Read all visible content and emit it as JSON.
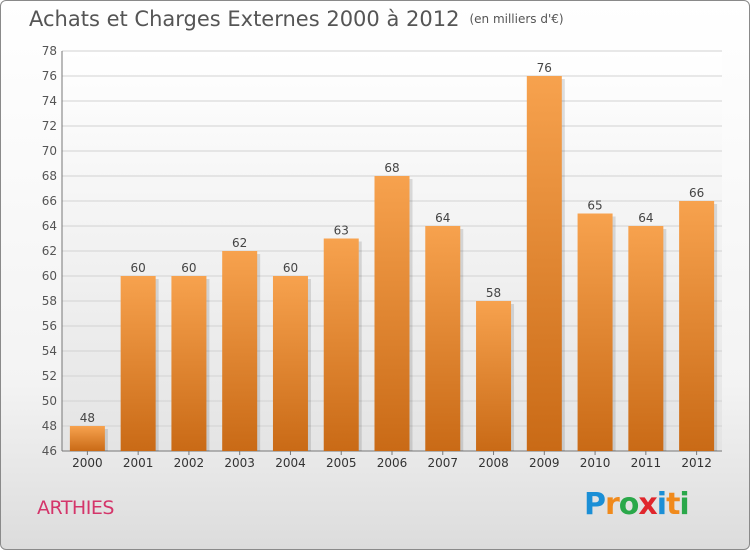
{
  "page": {
    "title": "Achats et Charges Externes 2000 à 2012",
    "unit": "(en milliers d'€)",
    "city": "ARTHIES",
    "logo": [
      "P",
      "r",
      "o",
      "x",
      "i",
      "t",
      "i"
    ],
    "logo_colors": [
      "#1b8fd6",
      "#f08a1c",
      "#2aa84a",
      "#e0262c",
      "#1b8fd6",
      "#f08a1c",
      "#2aa84a"
    ]
  },
  "chart_data": {
    "type": "bar",
    "categories": [
      "2000",
      "2001",
      "2002",
      "2003",
      "2004",
      "2005",
      "2006",
      "2007",
      "2008",
      "2009",
      "2010",
      "2011",
      "2012"
    ],
    "values": [
      48,
      60,
      60,
      62,
      60,
      63,
      68,
      64,
      58,
      76,
      65,
      64,
      66
    ],
    "ylim": [
      46,
      78
    ],
    "yticks": [
      46,
      48,
      50,
      52,
      54,
      56,
      58,
      60,
      62,
      64,
      66,
      68,
      70,
      72,
      74,
      76,
      78
    ],
    "bar_color_top": "#f7a24e",
    "bar_color_bottom": "#c96a16",
    "grid": true,
    "data_labels": true
  }
}
